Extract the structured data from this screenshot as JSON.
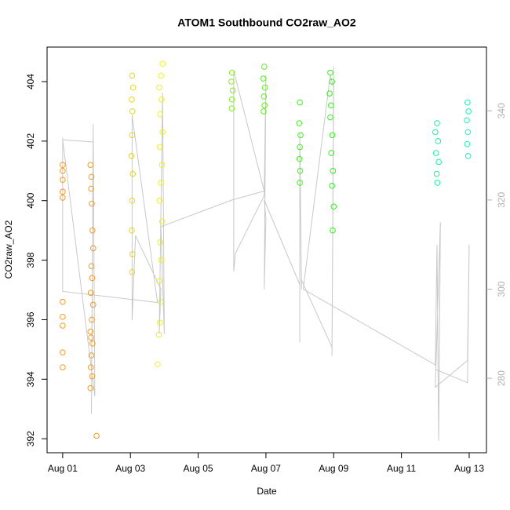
{
  "chart_data": {
    "type": "scatter",
    "title": "ATOM1 Southbound CO2raw_AO2",
    "x_label": "Date",
    "y_label": "CO2raw_AO2",
    "xlim": [
      0.54,
      13.51
    ],
    "xticks": [
      {
        "value": 1,
        "label": "Aug 01"
      },
      {
        "value": 3,
        "label": "Aug 03"
      },
      {
        "value": 5,
        "label": "Aug 05"
      },
      {
        "value": 7,
        "label": "Aug 07"
      },
      {
        "value": 9,
        "label": "Aug 09"
      },
      {
        "value": 11,
        "label": "Aug 11"
      },
      {
        "value": 13,
        "label": "Aug 13"
      }
    ],
    "ylim": [
      391.53,
      405.16
    ],
    "yticks": [
      392,
      394,
      396,
      398,
      400,
      402,
      404
    ],
    "y2lim": [
      263.3,
      354.3
    ],
    "y2ticks": [
      280,
      300,
      320,
      340
    ],
    "y2_color": "#b0b0b0",
    "series": [
      {
        "type": "line",
        "axis": "y2",
        "color": "#c8c8c8",
        "x": [
          1.0,
          1.0,
          1.9,
          1.85,
          1.9,
          1.95,
          1.0,
          1.0,
          3.8,
          3.05,
          3.05,
          3.15,
          3.9,
          3.85,
          3.95,
          4.0,
          3.9,
          6.0,
          6.95,
          6.05,
          6.05,
          6.1,
          6.95,
          7.0,
          6.95,
          7.0,
          6.95,
          8.0,
          8.0,
          8.0,
          8.05,
          8.05,
          8.95,
          9.0,
          8.95,
          9.0,
          8.9,
          8.1,
          12.0,
          12.05,
          12.1,
          12.15,
          12.0,
          12.95,
          13.0,
          12.95,
          12.0
        ],
        "values": [
          334,
          333.5,
          333,
          272,
          337,
          276,
          333.5,
          299.5,
          297,
          339,
          293,
          312,
          300,
          290,
          344,
          290,
          314,
          320,
          322,
          349,
          304,
          308,
          321,
          348,
          300,
          316,
          320,
          301,
          288,
          335,
          300,
          302,
          287,
          350,
          285,
          345,
          348,
          300,
          283,
          310,
          266,
          315,
          278,
          284,
          310,
          279,
          282
        ]
      },
      {
        "color": "#f39b25",
        "x": [
          1.0,
          1.0,
          1.0,
          1.0,
          1.0,
          1.0,
          1.0,
          1.0,
          1.0,
          1.0,
          1.82,
          1.85,
          1.84,
          1.86,
          1.88,
          1.9,
          1.85,
          1.87,
          1.83,
          1.9,
          1.86,
          1.82,
          1.84,
          1.88,
          1.85,
          1.83,
          1.87,
          1.82,
          2.0
        ],
        "values": [
          401.2,
          401.0,
          400.7,
          400.3,
          400.1,
          396.6,
          396.1,
          395.8,
          394.9,
          394.4,
          401.2,
          400.8,
          400.4,
          399.9,
          399.0,
          398.4,
          397.8,
          397.4,
          396.9,
          396.5,
          396.0,
          395.6,
          395.4,
          395.2,
          394.8,
          394.4,
          394.1,
          393.7,
          392.1
        ]
      },
      {
        "color": "#e5d51a",
        "x": [
          3.05,
          3.08,
          3.04,
          3.06,
          3.05,
          3.03,
          3.07,
          3.05,
          3.04,
          3.06,
          3.05
        ],
        "values": [
          404.2,
          403.8,
          403.4,
          403.0,
          402.2,
          401.5,
          400.9,
          400.0,
          399.0,
          398.2,
          397.6
        ]
      },
      {
        "color": "#eef020",
        "x": [
          3.95,
          3.9,
          3.85,
          3.92,
          3.88,
          3.95,
          3.87,
          3.93,
          3.9,
          3.86,
          3.94,
          3.88,
          3.91,
          3.85,
          3.89,
          3.87,
          3.84,
          3.8
        ],
        "values": [
          404.6,
          404.2,
          403.8,
          403.4,
          402.9,
          402.3,
          401.8,
          401.2,
          400.6,
          400.0,
          399.3,
          398.6,
          398.0,
          397.3,
          396.6,
          395.9,
          395.5,
          394.5
        ]
      },
      {
        "color": "#7ff01a",
        "x": [
          6.0,
          5.98,
          6.02,
          6.0,
          5.99
        ],
        "values": [
          404.3,
          404.0,
          403.7,
          403.4,
          403.1
        ]
      },
      {
        "color": "#5cf01a",
        "x": [
          6.95,
          6.92,
          6.97,
          6.94,
          6.96,
          6.93
        ],
        "values": [
          404.5,
          404.1,
          403.8,
          403.5,
          403.2,
          403.0
        ]
      },
      {
        "color": "#3cf01a",
        "x": [
          8.0,
          7.98,
          8.02,
          8.0,
          7.99,
          8.01,
          8.0
        ],
        "values": [
          403.3,
          402.6,
          402.2,
          401.8,
          401.4,
          401.0,
          400.6
        ]
      },
      {
        "color": "#2ef01a",
        "x": [
          8.9,
          8.95,
          8.88,
          8.92,
          8.9,
          8.96,
          8.93,
          8.98,
          8.95,
          9.0,
          8.97
        ],
        "values": [
          404.3,
          404.0,
          403.6,
          403.2,
          402.8,
          402.2,
          401.6,
          401.0,
          400.5,
          399.8,
          399.0
        ]
      },
      {
        "color": "#1af0a0",
        "x": [
          12.05,
          12.0,
          12.08,
          12.02,
          12.1,
          12.04,
          12.06
        ],
        "values": [
          402.6,
          402.3,
          402.0,
          401.6,
          401.3,
          400.9,
          400.6
        ]
      },
      {
        "color": "#1af0c0",
        "x": [
          12.95,
          12.98,
          12.93,
          12.96,
          12.94,
          12.97
        ],
        "values": [
          403.3,
          403.0,
          402.7,
          402.3,
          401.9,
          401.5
        ]
      }
    ]
  }
}
